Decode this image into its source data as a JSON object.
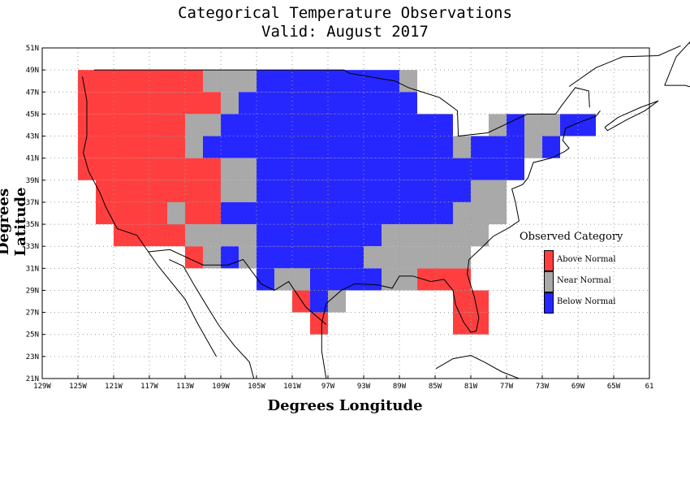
{
  "title": "Categorical Temperature Observations",
  "subtitle": "Valid: August 2017",
  "xlabel": "Degrees Longitude",
  "ylabel": "Degrees Latitude",
  "x_ticks": [
    "129W",
    "125W",
    "121W",
    "117W",
    "113W",
    "109W",
    "105W",
    "101W",
    "97W",
    "93W",
    "89W",
    "85W",
    "81W",
    "77W",
    "73W",
    "69W",
    "65W",
    "61"
  ],
  "y_ticks": [
    "51N",
    "49N",
    "47N",
    "45N",
    "43N",
    "41N",
    "39N",
    "37N",
    "35N",
    "33N",
    "31N",
    "29N",
    "27N",
    "25N",
    "23N",
    "21N"
  ],
  "legend": {
    "title": "Observed Category",
    "items": [
      {
        "label": "Above Normal",
        "color": "#ff3f3f"
      },
      {
        "label": "Near Normal",
        "color": "#a9a9a9"
      },
      {
        "label": "Below Normal",
        "color": "#2626ff"
      }
    ]
  },
  "chart_data": {
    "type": "heatmap",
    "title": "Categorical Temperature Observations",
    "subtitle": "Valid: August 2017",
    "xlabel": "Degrees Longitude",
    "ylabel": "Degrees Latitude",
    "xlim": [
      -129,
      -61
    ],
    "ylim": [
      21,
      51
    ],
    "grid": true,
    "legend_position": "right",
    "categories": {
      "A": "Above Normal",
      "N": "Near Normal",
      "B": "Below Normal"
    },
    "cell_size_degrees": 2,
    "rows_lat_top_down": [
      49,
      47,
      45,
      43,
      41,
      39,
      37,
      35,
      33,
      31,
      29,
      27,
      25
    ],
    "regions": [
      {
        "category": "A",
        "lat": [
          49,
          47
        ],
        "lon": [
          -125,
          -111
        ]
      },
      {
        "category": "N",
        "lat": [
          49,
          47
        ],
        "lon": [
          -111,
          -105
        ]
      },
      {
        "category": "B",
        "lat": [
          49,
          47
        ],
        "lon": [
          -105,
          -89
        ]
      },
      {
        "category": "N",
        "lat": [
          49,
          47
        ],
        "lon": [
          -89,
          -87
        ]
      },
      {
        "category": "A",
        "lat": [
          47,
          45
        ],
        "lon": [
          -125,
          -111
        ]
      },
      {
        "category": "A",
        "lat": [
          47,
          45
        ],
        "lon": [
          -111,
          -109
        ]
      },
      {
        "category": "N",
        "lat": [
          47,
          45
        ],
        "lon": [
          -109,
          -107
        ]
      },
      {
        "category": "B",
        "lat": [
          47,
          45
        ],
        "lon": [
          -107,
          -87
        ]
      },
      {
        "category": "A",
        "lat": [
          45,
          43
        ],
        "lon": [
          -125,
          -113
        ]
      },
      {
        "category": "N",
        "lat": [
          45,
          43
        ],
        "lon": [
          -113,
          -109
        ]
      },
      {
        "category": "B",
        "lat": [
          45,
          43
        ],
        "lon": [
          -109,
          -83
        ]
      },
      {
        "category": "N",
        "lat": [
          45,
          43
        ],
        "lon": [
          -79,
          -77
        ]
      },
      {
        "category": "B",
        "lat": [
          45,
          43
        ],
        "lon": [
          -77,
          -75
        ]
      },
      {
        "category": "N",
        "lat": [
          45,
          43
        ],
        "lon": [
          -75,
          -71
        ]
      },
      {
        "category": "B",
        "lat": [
          45,
          43
        ],
        "lon": [
          -71,
          -67
        ]
      },
      {
        "category": "A",
        "lat": [
          43,
          41
        ],
        "lon": [
          -125,
          -113
        ]
      },
      {
        "category": "N",
        "lat": [
          43,
          41
        ],
        "lon": [
          -113,
          -111
        ]
      },
      {
        "category": "B",
        "lat": [
          43,
          41
        ],
        "lon": [
          -111,
          -83
        ]
      },
      {
        "category": "N",
        "lat": [
          43,
          41
        ],
        "lon": [
          -83,
          -81
        ]
      },
      {
        "category": "B",
        "lat": [
          43,
          41
        ],
        "lon": [
          -81,
          -75
        ]
      },
      {
        "category": "N",
        "lat": [
          43,
          41
        ],
        "lon": [
          -75,
          -73
        ]
      },
      {
        "category": "B",
        "lat": [
          43,
          41
        ],
        "lon": [
          -73,
          -71
        ]
      },
      {
        "category": "A",
        "lat": [
          41,
          39
        ],
        "lon": [
          -125,
          -109
        ]
      },
      {
        "category": "N",
        "lat": [
          41,
          39
        ],
        "lon": [
          -109,
          -105
        ]
      },
      {
        "category": "B",
        "lat": [
          41,
          39
        ],
        "lon": [
          -105,
          -75
        ]
      },
      {
        "category": "A",
        "lat": [
          39,
          37
        ],
        "lon": [
          -123,
          -109
        ]
      },
      {
        "category": "N",
        "lat": [
          39,
          37
        ],
        "lon": [
          -109,
          -105
        ]
      },
      {
        "category": "B",
        "lat": [
          39,
          37
        ],
        "lon": [
          -105,
          -81
        ]
      },
      {
        "category": "N",
        "lat": [
          39,
          37
        ],
        "lon": [
          -81,
          -77
        ]
      },
      {
        "category": "A",
        "lat": [
          37,
          35
        ],
        "lon": [
          -123,
          -115
        ]
      },
      {
        "category": "N",
        "lat": [
          37,
          35
        ],
        "lon": [
          -115,
          -113
        ]
      },
      {
        "category": "A",
        "lat": [
          37,
          35
        ],
        "lon": [
          -113,
          -109
        ]
      },
      {
        "category": "B",
        "lat": [
          37,
          35
        ],
        "lon": [
          -109,
          -83
        ]
      },
      {
        "category": "N",
        "lat": [
          37,
          35
        ],
        "lon": [
          -83,
          -77
        ]
      },
      {
        "category": "A",
        "lat": [
          35,
          33
        ],
        "lon": [
          -121,
          -113
        ]
      },
      {
        "category": "N",
        "lat": [
          35,
          33
        ],
        "lon": [
          -113,
          -105
        ]
      },
      {
        "category": "B",
        "lat": [
          35,
          33
        ],
        "lon": [
          -105,
          -91
        ]
      },
      {
        "category": "N",
        "lat": [
          35,
          33
        ],
        "lon": [
          -91,
          -79
        ]
      },
      {
        "category": "A",
        "lat": [
          33,
          31
        ],
        "lon": [
          -113,
          -111
        ]
      },
      {
        "category": "N",
        "lat": [
          33,
          31
        ],
        "lon": [
          -111,
          -109
        ]
      },
      {
        "category": "B",
        "lat": [
          33,
          31
        ],
        "lon": [
          -109,
          -107
        ]
      },
      {
        "category": "N",
        "lat": [
          33,
          31
        ],
        "lon": [
          -107,
          -105
        ]
      },
      {
        "category": "B",
        "lat": [
          33,
          31
        ],
        "lon": [
          -105,
          -93
        ]
      },
      {
        "category": "N",
        "lat": [
          33,
          31
        ],
        "lon": [
          -93,
          -81
        ]
      },
      {
        "category": "B",
        "lat": [
          31,
          29
        ],
        "lon": [
          -105,
          -103
        ]
      },
      {
        "category": "N",
        "lat": [
          31,
          29
        ],
        "lon": [
          -103,
          -99
        ]
      },
      {
        "category": "B",
        "lat": [
          31,
          29
        ],
        "lon": [
          -99,
          -91
        ]
      },
      {
        "category": "N",
        "lat": [
          31,
          29
        ],
        "lon": [
          -91,
          -87
        ]
      },
      {
        "category": "A",
        "lat": [
          31,
          29
        ],
        "lon": [
          -87,
          -81
        ]
      },
      {
        "category": "A",
        "lat": [
          29,
          27
        ],
        "lon": [
          -101,
          -99
        ]
      },
      {
        "category": "B",
        "lat": [
          29,
          27
        ],
        "lon": [
          -99,
          -97
        ]
      },
      {
        "category": "N",
        "lat": [
          29,
          27
        ],
        "lon": [
          -97,
          -95
        ]
      },
      {
        "category": "A",
        "lat": [
          29,
          27
        ],
        "lon": [
          -83,
          -79
        ]
      },
      {
        "category": "A",
        "lat": [
          27,
          25
        ],
        "lon": [
          -99,
          -97
        ]
      },
      {
        "category": "A",
        "lat": [
          27,
          25
        ],
        "lon": [
          -83,
          -79
        ]
      }
    ]
  }
}
